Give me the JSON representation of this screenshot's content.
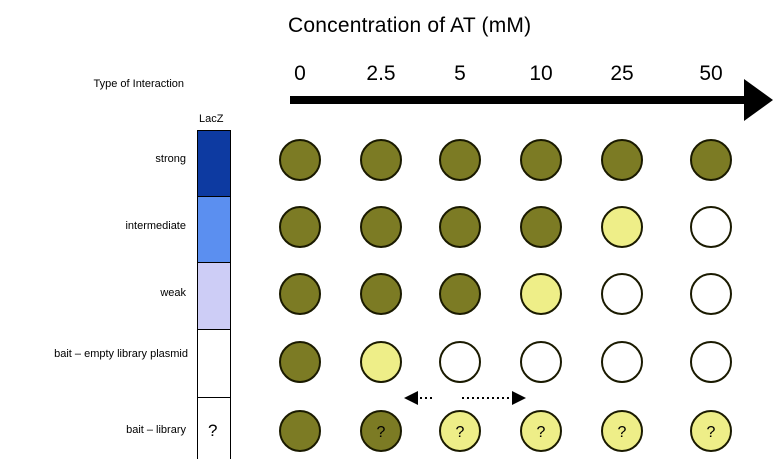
{
  "title": "Concentration of AT (mM)",
  "concentrations": [
    "0",
    "2.5",
    "5",
    "10",
    "25",
    "50"
  ],
  "type_label": "Type of Interaction",
  "lacz_label": "LacZ",
  "question_mark": "?",
  "colors": {
    "dark_olive": "#7c7b24",
    "pale_yellow": "#eeee88",
    "white": "#ffffff",
    "lacz_strong": "#0d3aa1",
    "lacz_intermediate": "#5b8ff0",
    "lacz_weak": "#cdcdf6",
    "lacz_none": "#ffffff"
  },
  "rows": [
    {
      "label": "strong",
      "lacz": "lacz_strong",
      "lacz_mark": "",
      "spots": [
        {
          "fill": "dark_olive",
          "mark": ""
        },
        {
          "fill": "dark_olive",
          "mark": ""
        },
        {
          "fill": "dark_olive",
          "mark": ""
        },
        {
          "fill": "dark_olive",
          "mark": ""
        },
        {
          "fill": "dark_olive",
          "mark": ""
        },
        {
          "fill": "dark_olive",
          "mark": ""
        }
      ]
    },
    {
      "label": "intermediate",
      "lacz": "lacz_intermediate",
      "lacz_mark": "",
      "spots": [
        {
          "fill": "dark_olive",
          "mark": ""
        },
        {
          "fill": "dark_olive",
          "mark": ""
        },
        {
          "fill": "dark_olive",
          "mark": ""
        },
        {
          "fill": "dark_olive",
          "mark": ""
        },
        {
          "fill": "pale_yellow",
          "mark": ""
        },
        {
          "fill": "white",
          "mark": ""
        }
      ]
    },
    {
      "label": "weak",
      "lacz": "lacz_weak",
      "lacz_mark": "",
      "spots": [
        {
          "fill": "dark_olive",
          "mark": ""
        },
        {
          "fill": "dark_olive",
          "mark": ""
        },
        {
          "fill": "dark_olive",
          "mark": ""
        },
        {
          "fill": "pale_yellow",
          "mark": ""
        },
        {
          "fill": "white",
          "mark": ""
        },
        {
          "fill": "white",
          "mark": ""
        }
      ]
    },
    {
      "label": "bait – empty library plasmid",
      "lacz": "lacz_none",
      "lacz_mark": "",
      "spots": [
        {
          "fill": "dark_olive",
          "mark": ""
        },
        {
          "fill": "pale_yellow",
          "mark": ""
        },
        {
          "fill": "white",
          "mark": ""
        },
        {
          "fill": "white",
          "mark": ""
        },
        {
          "fill": "white",
          "mark": ""
        },
        {
          "fill": "white",
          "mark": ""
        }
      ]
    },
    {
      "label": "bait – library",
      "lacz": "lacz_none",
      "lacz_mark": "?",
      "spots": [
        {
          "fill": "dark_olive",
          "mark": ""
        },
        {
          "fill": "dark_olive",
          "mark": "?"
        },
        {
          "fill": "pale_yellow",
          "mark": "?"
        },
        {
          "fill": "pale_yellow",
          "mark": "?"
        },
        {
          "fill": "pale_yellow",
          "mark": "?"
        },
        {
          "fill": "pale_yellow",
          "mark": "?"
        }
      ]
    }
  ]
}
